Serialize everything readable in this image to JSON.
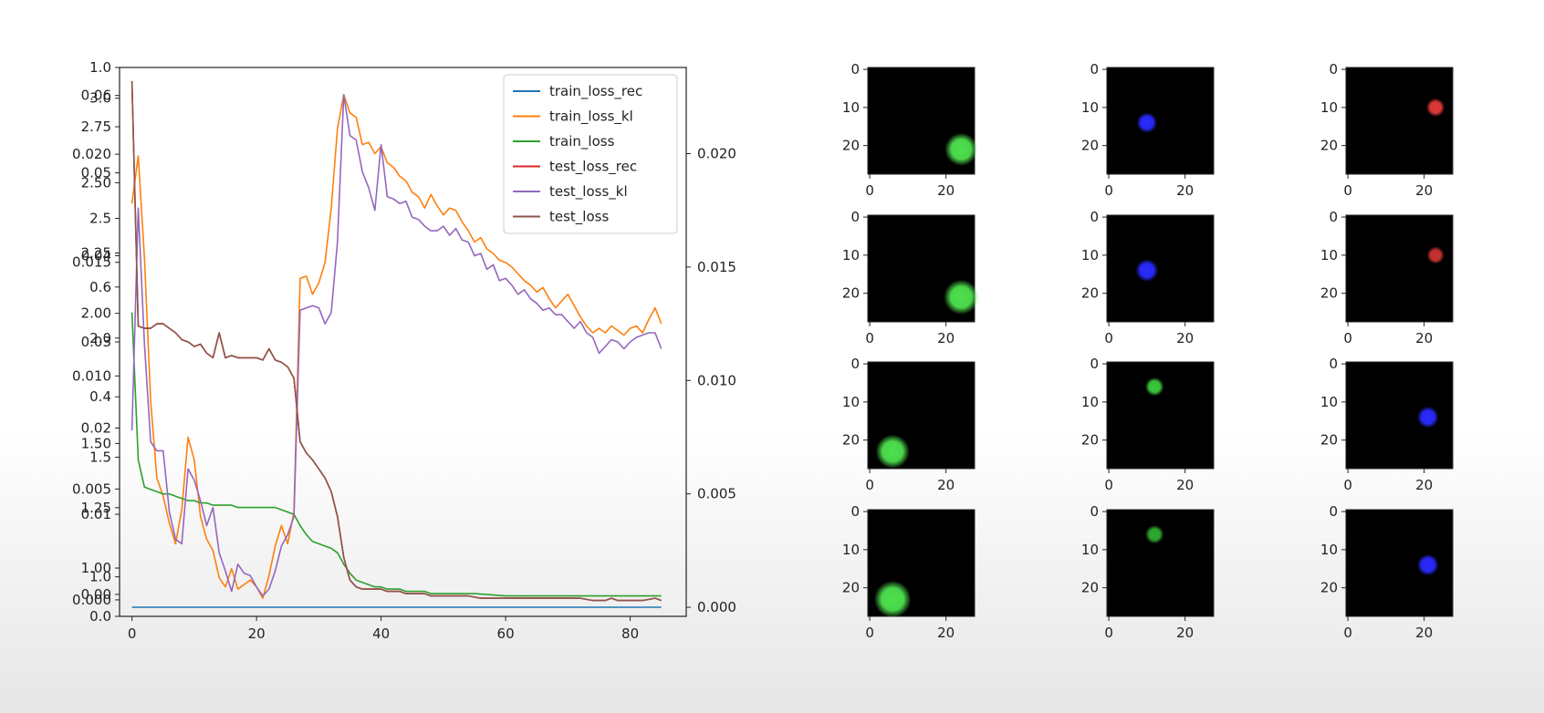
{
  "chart_data": [
    {
      "type": "line",
      "xlim": [
        -2,
        89
      ],
      "x_ticks": [
        0,
        20,
        40,
        60,
        80
      ],
      "right_ylim": [
        -0.0004,
        0.0238
      ],
      "right_y_ticks": [
        "0.000",
        "0.005",
        "0.010",
        "0.015",
        "0.020"
      ],
      "left_overlapping_tick_labels": [
        {
          "text": "1.0",
          "v": 1.0
        },
        {
          "text": "0.06",
          "v": 0.949
        },
        {
          "text": "3.0",
          "v": 0.944
        },
        {
          "text": "2.75",
          "v": 0.892
        },
        {
          "text": "0.020",
          "v": 0.842
        },
        {
          "text": "0.05",
          "v": 0.808
        },
        {
          "text": "2.50",
          "v": 0.79
        },
        {
          "text": "2.5",
          "v": 0.725
        },
        {
          "text": "2.25",
          "v": 0.662
        },
        {
          "text": "0.04",
          "v": 0.657
        },
        {
          "text": "0.015",
          "v": 0.645
        },
        {
          "text": "0.6",
          "v": 0.6
        },
        {
          "text": "2.00",
          "v": 0.552
        },
        {
          "text": "2.0",
          "v": 0.507
        },
        {
          "text": "0.03",
          "v": 0.5
        },
        {
          "text": "0.010",
          "v": 0.438
        },
        {
          "text": "0.4",
          "v": 0.4
        },
        {
          "text": "0.02",
          "v": 0.343
        },
        {
          "text": "1.50",
          "v": 0.315
        },
        {
          "text": "1.5",
          "v": 0.29
        },
        {
          "text": "0.005",
          "v": 0.232
        },
        {
          "text": "1.25",
          "v": 0.198
        },
        {
          "text": "0.01",
          "v": 0.186
        },
        {
          "text": "1.00",
          "v": 0.088
        },
        {
          "text": "1.0",
          "v": 0.072
        },
        {
          "text": "0.00",
          "v": 0.04
        },
        {
          "text": "0.000",
          "v": 0.03
        },
        {
          "text": "0.0",
          "v": 0.0
        }
      ],
      "legend_position": "top-right",
      "series": [
        {
          "name": "train_loss_rec",
          "color": "#1f77b4",
          "x": [
            0,
            10,
            20,
            30,
            40,
            50,
            60,
            70,
            80,
            85
          ],
          "y": [
            0.0,
            0.0,
            0.0,
            0.0,
            0.0,
            0.0,
            0.0,
            0.0,
            0.0,
            0.0
          ]
        },
        {
          "name": "train_loss_kl",
          "color": "#ff7f0e",
          "x": [
            0,
            1,
            2,
            3,
            4,
            5,
            6,
            7,
            8,
            9,
            10,
            11,
            12,
            13,
            14,
            15,
            16,
            17,
            18,
            19,
            20,
            21,
            22,
            23,
            24,
            25,
            26,
            27,
            28,
            29,
            30,
            31,
            32,
            33,
            34,
            35,
            36,
            37,
            38,
            39,
            40,
            41,
            42,
            43,
            44,
            45,
            46,
            47,
            48,
            49,
            50,
            51,
            52,
            53,
            54,
            55,
            56,
            57,
            58,
            59,
            60,
            61,
            62,
            63,
            64,
            65,
            66,
            67,
            68,
            69,
            70,
            71,
            72,
            73,
            74,
            75,
            76,
            77,
            78,
            79,
            80,
            81,
            82,
            83,
            84,
            85
          ],
          "y": [
            0.0178,
            0.0199,
            0.0154,
            0.0091,
            0.0057,
            0.0049,
            0.0037,
            0.0028,
            0.0043,
            0.0075,
            0.0065,
            0.004,
            0.003,
            0.0025,
            0.0013,
            0.0009,
            0.0017,
            0.0008,
            0.001,
            0.0012,
            0.0009,
            0.0004,
            0.0014,
            0.0027,
            0.0036,
            0.0028,
            0.0042,
            0.0145,
            0.0146,
            0.0138,
            0.0143,
            0.0152,
            0.0176,
            0.0211,
            0.0226,
            0.0218,
            0.0216,
            0.0204,
            0.0205,
            0.02,
            0.0203,
            0.0196,
            0.0194,
            0.019,
            0.0188,
            0.0183,
            0.0181,
            0.0176,
            0.0182,
            0.0177,
            0.0173,
            0.0176,
            0.0175,
            0.017,
            0.0166,
            0.0161,
            0.0163,
            0.0158,
            0.0156,
            0.0153,
            0.0152,
            0.015,
            0.0147,
            0.0144,
            0.0142,
            0.0139,
            0.0141,
            0.0136,
            0.0132,
            0.0135,
            0.0138,
            0.0133,
            0.0128,
            0.0124,
            0.0121,
            0.0123,
            0.0121,
            0.0124,
            0.0122,
            0.012,
            0.0123,
            0.0124,
            0.0121,
            0.0127,
            0.0132,
            0.0125
          ]
        },
        {
          "name": "train_loss",
          "color": "#2ca02c",
          "x": [
            0,
            1,
            2,
            3,
            4,
            5,
            6,
            7,
            8,
            9,
            10,
            11,
            12,
            13,
            14,
            15,
            16,
            17,
            18,
            19,
            20,
            21,
            22,
            23,
            24,
            25,
            26,
            27,
            28,
            29,
            30,
            31,
            32,
            33,
            34,
            35,
            36,
            37,
            38,
            39,
            40,
            41,
            42,
            43,
            44,
            45,
            46,
            47,
            48,
            49,
            50,
            55,
            60,
            65,
            70,
            75,
            80,
            85
          ],
          "y": [
            0.013,
            0.0065,
            0.0053,
            0.0052,
            0.0051,
            0.005,
            0.005,
            0.0049,
            0.0048,
            0.0047,
            0.0047,
            0.0046,
            0.0046,
            0.0045,
            0.0045,
            0.0045,
            0.0045,
            0.0044,
            0.0044,
            0.0044,
            0.0044,
            0.0044,
            0.0044,
            0.0044,
            0.0043,
            0.0042,
            0.0041,
            0.0036,
            0.0032,
            0.0029,
            0.0028,
            0.0027,
            0.0026,
            0.0024,
            0.0019,
            0.0015,
            0.0012,
            0.0011,
            0.001,
            0.0009,
            0.0009,
            0.0008,
            0.0008,
            0.0008,
            0.0007,
            0.0007,
            0.0007,
            0.0007,
            0.0006,
            0.0006,
            0.0006,
            0.0006,
            0.0005,
            0.0005,
            0.0005,
            0.0005,
            0.0005,
            0.0005
          ]
        },
        {
          "name": "test_loss_rec",
          "color": "#d62728",
          "x": [
            0,
            1,
            2,
            3,
            4,
            5,
            6,
            7,
            8,
            9,
            10,
            11,
            12,
            13,
            14,
            15,
            16,
            17,
            18,
            19,
            20,
            21,
            22,
            23,
            24,
            25,
            26,
            27,
            28,
            29,
            30,
            31,
            32,
            33,
            34,
            35,
            36,
            37,
            38,
            39,
            40,
            41,
            42,
            43,
            44,
            45,
            46,
            47,
            48,
            49,
            50,
            52,
            54,
            56,
            58,
            60,
            62,
            64,
            66,
            68,
            70,
            72,
            74,
            76,
            77,
            78,
            80,
            82,
            84,
            85
          ],
          "y": [
            0.0232,
            0.0124,
            0.0123,
            0.0123,
            0.0125,
            0.0125,
            0.0123,
            0.0121,
            0.0118,
            0.0117,
            0.0115,
            0.0116,
            0.0112,
            0.011,
            0.0121,
            0.011,
            0.0111,
            0.011,
            0.011,
            0.011,
            0.011,
            0.0109,
            0.0114,
            0.0109,
            0.0108,
            0.0106,
            0.0101,
            0.0073,
            0.0068,
            0.0065,
            0.0061,
            0.0057,
            0.0051,
            0.004,
            0.0022,
            0.0012,
            0.0009,
            0.0008,
            0.0008,
            0.0008,
            0.0008,
            0.0007,
            0.0007,
            0.0007,
            0.0006,
            0.0006,
            0.0006,
            0.0006,
            0.0005,
            0.0005,
            0.0005,
            0.0005,
            0.0005,
            0.0004,
            0.0004,
            0.0004,
            0.0004,
            0.0004,
            0.0004,
            0.0004,
            0.0004,
            0.0004,
            0.0003,
            0.0003,
            0.0004,
            0.0003,
            0.0003,
            0.0003,
            0.0004,
            0.0003
          ]
        },
        {
          "name": "test_loss_kl",
          "color": "#9467bd",
          "x": [
            0,
            1,
            2,
            3,
            4,
            5,
            6,
            7,
            8,
            9,
            10,
            11,
            12,
            13,
            14,
            15,
            16,
            17,
            18,
            19,
            20,
            21,
            22,
            23,
            24,
            25,
            26,
            27,
            28,
            29,
            30,
            31,
            32,
            33,
            34,
            35,
            36,
            37,
            38,
            39,
            40,
            41,
            42,
            43,
            44,
            45,
            46,
            47,
            48,
            49,
            50,
            51,
            52,
            53,
            54,
            55,
            56,
            57,
            58,
            59,
            60,
            61,
            62,
            63,
            64,
            65,
            66,
            67,
            68,
            69,
            70,
            71,
            72,
            73,
            74,
            75,
            76,
            77,
            78,
            79,
            80,
            81,
            82,
            83,
            84,
            85
          ],
          "y": [
            0.0078,
            0.0176,
            0.0116,
            0.0073,
            0.0069,
            0.0069,
            0.0042,
            0.003,
            0.0028,
            0.0061,
            0.0056,
            0.0047,
            0.0036,
            0.0044,
            0.0024,
            0.0016,
            0.0007,
            0.0019,
            0.0015,
            0.0014,
            0.0009,
            0.0005,
            0.0008,
            0.0016,
            0.0027,
            0.0032,
            0.004,
            0.0131,
            0.0132,
            0.0133,
            0.0132,
            0.0125,
            0.013,
            0.0161,
            0.0226,
            0.0208,
            0.0206,
            0.0192,
            0.0185,
            0.0175,
            0.0204,
            0.0181,
            0.018,
            0.0178,
            0.0179,
            0.0172,
            0.0171,
            0.0168,
            0.0166,
            0.0166,
            0.0168,
            0.0164,
            0.0167,
            0.0162,
            0.0161,
            0.0155,
            0.0156,
            0.0149,
            0.0151,
            0.0144,
            0.0145,
            0.0142,
            0.0138,
            0.014,
            0.0136,
            0.0134,
            0.0131,
            0.0132,
            0.0129,
            0.0129,
            0.0126,
            0.0123,
            0.0126,
            0.0121,
            0.0119,
            0.0112,
            0.0115,
            0.0118,
            0.0117,
            0.0114,
            0.0117,
            0.0119,
            0.012,
            0.0121,
            0.0121,
            0.0114
          ]
        },
        {
          "name": "test_loss",
          "color": "#8c564b",
          "x": [
            0,
            1,
            2,
            3,
            4,
            5,
            6,
            7,
            8,
            9,
            10,
            11,
            12,
            13,
            14,
            15,
            16,
            17,
            18,
            19,
            20,
            21,
            22,
            23,
            24,
            25,
            26,
            27,
            28,
            29,
            30,
            31,
            32,
            33,
            34,
            35,
            36,
            37,
            38,
            39,
            40,
            41,
            42,
            43,
            44,
            45,
            46,
            47,
            48,
            49,
            50,
            52,
            54,
            56,
            58,
            60,
            62,
            64,
            66,
            68,
            70,
            72,
            74,
            76,
            77,
            78,
            80,
            82,
            84,
            85
          ],
          "y": [
            0.0232,
            0.0124,
            0.0123,
            0.0123,
            0.0125,
            0.0125,
            0.0123,
            0.0121,
            0.0118,
            0.0117,
            0.0115,
            0.0116,
            0.0112,
            0.011,
            0.0121,
            0.011,
            0.0111,
            0.011,
            0.011,
            0.011,
            0.011,
            0.0109,
            0.0114,
            0.0109,
            0.0108,
            0.0106,
            0.0101,
            0.0073,
            0.0068,
            0.0065,
            0.0061,
            0.0057,
            0.0051,
            0.004,
            0.0022,
            0.0012,
            0.0009,
            0.0008,
            0.0008,
            0.0008,
            0.0008,
            0.0007,
            0.0007,
            0.0007,
            0.0006,
            0.0006,
            0.0006,
            0.0006,
            0.0005,
            0.0005,
            0.0005,
            0.0005,
            0.0005,
            0.0004,
            0.0004,
            0.0004,
            0.0004,
            0.0004,
            0.0004,
            0.0004,
            0.0004,
            0.0004,
            0.0003,
            0.0003,
            0.0004,
            0.0003,
            0.0003,
            0.0003,
            0.0004,
            0.0003
          ]
        }
      ]
    },
    {
      "type": "image-grid",
      "rows": 4,
      "cols": 3,
      "image_size": 28,
      "x_ticks": [
        0,
        20
      ],
      "y_ticks": [
        0,
        10,
        20
      ],
      "images": [
        {
          "row": 0,
          "col": 0,
          "blob": {
            "x": 24,
            "y": 21,
            "r": 3.2,
            "color": "#4ee04e"
          }
        },
        {
          "row": 0,
          "col": 1,
          "blob": {
            "x": 10,
            "y": 14,
            "r": 2.0,
            "color": "#2a2aff"
          }
        },
        {
          "row": 0,
          "col": 2,
          "blob": {
            "x": 23,
            "y": 10,
            "r": 1.8,
            "color": "#e03a3a"
          }
        },
        {
          "row": 1,
          "col": 0,
          "blob": {
            "x": 24,
            "y": 21,
            "r": 3.4,
            "color": "#4ee04e"
          }
        },
        {
          "row": 1,
          "col": 1,
          "blob": {
            "x": 10,
            "y": 14,
            "r": 2.2,
            "color": "#2a2aff"
          }
        },
        {
          "row": 1,
          "col": 2,
          "blob": {
            "x": 23,
            "y": 10,
            "r": 1.7,
            "color": "#c83232"
          }
        },
        {
          "row": 2,
          "col": 0,
          "blob": {
            "x": 6,
            "y": 23,
            "r": 3.3,
            "color": "#4ee04e"
          }
        },
        {
          "row": 2,
          "col": 1,
          "blob": {
            "x": 12,
            "y": 6,
            "r": 1.8,
            "color": "#3cc83c"
          }
        },
        {
          "row": 2,
          "col": 2,
          "blob": {
            "x": 21,
            "y": 14,
            "r": 2.1,
            "color": "#2a2aff"
          }
        },
        {
          "row": 3,
          "col": 0,
          "blob": {
            "x": 6,
            "y": 23,
            "r": 3.6,
            "color": "#4ee04e"
          }
        },
        {
          "row": 3,
          "col": 1,
          "blob": {
            "x": 12,
            "y": 6,
            "r": 1.8,
            "color": "#2fa82f"
          }
        },
        {
          "row": 3,
          "col": 2,
          "blob": {
            "x": 21,
            "y": 14,
            "r": 2.1,
            "color": "#2a2aff"
          }
        }
      ]
    }
  ]
}
